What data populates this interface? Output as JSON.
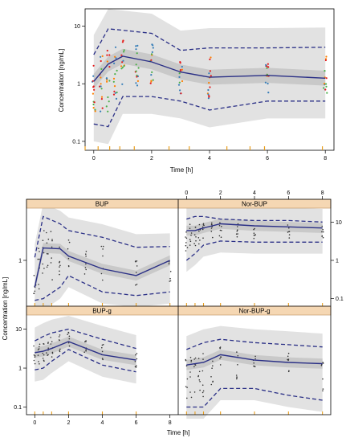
{
  "colors": {
    "median": "#2a2f86",
    "pi": "#2a2f86",
    "band": "#e2e2e2",
    "band_mid": "#c9c9c9",
    "strip": "#f5d7b3",
    "strip_border": "#b98b57",
    "rug": "#e89d1c",
    "obs": [
      "#e41a1c",
      "#377eb8",
      "#4daf4a",
      "#ff7f00"
    ]
  },
  "top": {
    "xlabel": "Time [h]",
    "ylabel": "Concentration [ng/mL]",
    "xticks": [
      0,
      2,
      4,
      6,
      8
    ],
    "yticks": [
      "0.1",
      "1",
      "10"
    ]
  },
  "bottom": {
    "xlabel": "Time [h]",
    "ylabel": "Concentration [ng/mL]",
    "xticks": [
      0,
      2,
      4,
      6,
      8
    ],
    "y_left_ticks": [
      "1"
    ],
    "y_right_ticks": [
      "0.1",
      "1",
      "10"
    ],
    "y_left_bottom_ticks": [
      "0.1",
      "1",
      "10"
    ],
    "panels": [
      "BUP",
      "Nor-BUP",
      "BUP-g",
      "Nor-BUP-g"
    ]
  },
  "chart_data": [
    {
      "type": "scatter",
      "title": "",
      "xlabel": "Time [h]",
      "ylabel": "Concentration [ng/mL]",
      "yscale": "log",
      "xlim": [
        -0.3,
        8.3
      ],
      "ylim": [
        0.07,
        20
      ],
      "median_x": [
        0,
        0.5,
        1,
        2,
        3,
        4,
        6,
        8
      ],
      "median_y": [
        1.1,
        2.2,
        3.0,
        2.4,
        1.6,
        1.3,
        1.4,
        1.25
      ],
      "pi_upper_y": [
        3.2,
        9.0,
        8.5,
        7.5,
        3.8,
        4.2,
        4.2,
        4.3
      ],
      "pi_lower_y": [
        0.2,
        0.18,
        0.6,
        0.6,
        0.5,
        0.35,
        0.5,
        0.5
      ],
      "rug_x": [
        -0.3,
        0.15,
        0.55,
        0.9,
        1.4,
        2.6,
        3.3,
        4.6,
        5.4,
        5.9,
        7.9
      ]
    },
    {
      "type": "scatter",
      "title": "BUP",
      "yscale": "log",
      "xlim": [
        -0.3,
        8.3
      ],
      "ylim": [
        0.07,
        20
      ],
      "median_x": [
        0,
        0.5,
        1.5,
        2,
        4,
        6,
        8
      ],
      "median_y": [
        0.2,
        2.1,
        2.0,
        1.3,
        0.6,
        0.4,
        1.0
      ],
      "pi_upper_y": [
        1.2,
        14,
        9,
        6,
        4,
        2.2,
        2.3
      ],
      "pi_lower_y": [
        0.09,
        0.1,
        0.2,
        0.4,
        0.15,
        0.12,
        0.15
      ]
    },
    {
      "type": "scatter",
      "title": "Nor-BUP",
      "yscale": "log",
      "xlim": [
        -0.3,
        8.3
      ],
      "ylim": [
        0.07,
        20
      ],
      "median_x": [
        0,
        0.5,
        1,
        2,
        4,
        6,
        8
      ],
      "median_y": [
        6,
        6,
        7,
        9,
        8,
        7.5,
        7
      ],
      "pi_upper_y": [
        12,
        14,
        14,
        12,
        11,
        11,
        10
      ],
      "pi_lower_y": [
        1.0,
        1.5,
        2.5,
        3.2,
        3.0,
        3.0,
        3.0
      ]
    },
    {
      "type": "scatter",
      "title": "BUP-g",
      "yscale": "log",
      "xlim": [
        -0.3,
        8.3
      ],
      "ylim": [
        0.07,
        20
      ],
      "median_x": [
        0,
        0.5,
        1,
        2,
        4,
        6
      ],
      "median_y": [
        2.5,
        2.7,
        3.2,
        4.8,
        2.2,
        1.6
      ],
      "pi_upper_y": [
        5.0,
        6.5,
        8.0,
        10,
        5.5,
        3.2
      ],
      "pi_lower_y": [
        0.9,
        1.0,
        1.5,
        3.0,
        1.2,
        0.8
      ]
    },
    {
      "type": "scatter",
      "title": "Nor-BUP-g",
      "yscale": "log",
      "xlim": [
        -0.3,
        8.3
      ],
      "ylim": [
        0.07,
        20
      ],
      "median_x": [
        0,
        1,
        2,
        4,
        6,
        8
      ],
      "median_y": [
        1.2,
        1.4,
        2.2,
        1.6,
        1.4,
        1.3
      ],
      "pi_upper_y": [
        3.0,
        4.5,
        5.5,
        4.5,
        4.0,
        3.5
      ],
      "pi_lower_y": [
        0.1,
        0.1,
        0.3,
        0.3,
        0.2,
        0.15
      ]
    }
  ]
}
